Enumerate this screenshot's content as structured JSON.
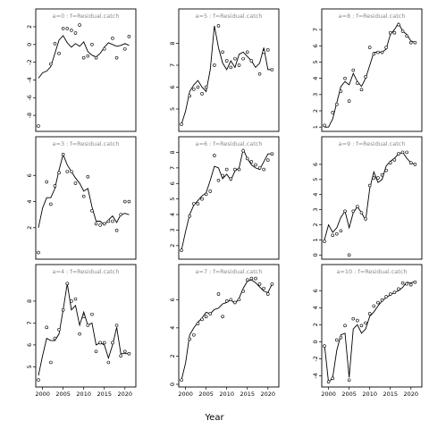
{
  "chart_data": {
    "type": "line",
    "layout": "3x3 facet grid",
    "xlabel": "Year",
    "strip_format": "a={a} : f=Residual.catch",
    "panels": [
      {
        "strip": "a=0 : f=Residual.catch",
        "xlim": [
          1999,
          2022
        ],
        "ylim": [
          -9.5,
          2.6
        ],
        "yticks": [
          -8,
          -6,
          -4,
          -2,
          0,
          2
        ],
        "x": [
          1999,
          2000,
          2001,
          2002,
          2003,
          2004,
          2005,
          2006,
          2007,
          2008,
          2009,
          2010,
          2011,
          2012,
          2013,
          2014,
          2015,
          2016,
          2017,
          2018,
          2019,
          2020,
          2021
        ],
        "fitted": [
          -3.8,
          -3.2,
          -3.0,
          -2.5,
          -1.0,
          0.5,
          1.0,
          0.2,
          -0.3,
          0.1,
          -0.2,
          0.3,
          -0.8,
          -1.2,
          -1.4,
          -1.0,
          -0.3,
          0.2,
          0.0,
          -0.2,
          -0.1,
          0.1,
          -0.1
        ],
        "observed_x": [
          1999,
          2002,
          2003,
          2004,
          2005,
          2006,
          2007,
          2008,
          2009,
          2010,
          2011,
          2012,
          2013,
          2015,
          2017,
          2018,
          2020,
          2021
        ],
        "observed_y": [
          -9.2,
          -2.2,
          0.1,
          -1.0,
          1.8,
          1.8,
          1.6,
          1.3,
          2.2,
          -1.5,
          -1.3,
          0.0,
          -1.5,
          -0.5,
          0.7,
          -1.5,
          -0.5,
          0.9
        ]
      },
      {
        "strip": "a=5 : f=Residual.catch",
        "xlim": [
          1999,
          2022
        ],
        "ylim": [
          4.1,
          9.0
        ],
        "yticks": [
          5,
          6,
          7,
          8
        ],
        "x": [
          1999,
          2000,
          2001,
          2002,
          2003,
          2004,
          2005,
          2006,
          2007,
          2008,
          2009,
          2010,
          2011,
          2012,
          2013,
          2014,
          2015,
          2016,
          2017,
          2018,
          2019,
          2020,
          2021
        ],
        "fitted": [
          4.3,
          4.9,
          5.8,
          6.1,
          6.3,
          6.0,
          5.8,
          6.8,
          8.8,
          7.8,
          7.1,
          6.8,
          7.2,
          6.9,
          7.5,
          7.6,
          7.4,
          7.2,
          6.9,
          7.1,
          7.8,
          6.8,
          6.8
        ],
        "observed_x": [
          1999,
          2001,
          2002,
          2003,
          2004,
          2005,
          2007,
          2008,
          2009,
          2010,
          2011,
          2012,
          2013,
          2014,
          2015,
          2016,
          2018,
          2019,
          2020,
          2021
        ],
        "observed_y": [
          4.3,
          5.6,
          5.9,
          6.0,
          5.7,
          6.0,
          7.0,
          8.8,
          7.6,
          7.2,
          6.9,
          7.3,
          7.0,
          7.3,
          7.6,
          7.2,
          6.6,
          7.6,
          7.7,
          6.8
        ]
      },
      {
        "strip": "a=8 : f=Residual.catch",
        "xlim": [
          1999,
          2022
        ],
        "ylim": [
          0.9,
          7.5
        ],
        "yticks": [
          1,
          2,
          3,
          4,
          5,
          6,
          7
        ],
        "x": [
          1999,
          2000,
          2001,
          2002,
          2003,
          2004,
          2005,
          2006,
          2007,
          2008,
          2009,
          2010,
          2011,
          2012,
          2013,
          2014,
          2015,
          2016,
          2017,
          2018,
          2019,
          2020,
          2021
        ],
        "fitted": [
          1.0,
          1.0,
          1.5,
          2.5,
          3.5,
          3.8,
          3.6,
          4.3,
          3.8,
          3.5,
          4.0,
          4.8,
          5.6,
          5.6,
          5.6,
          5.8,
          6.7,
          7.0,
          7.4,
          6.9,
          6.7,
          6.3,
          6.2
        ],
        "observed_x": [
          1999,
          2001,
          2002,
          2003,
          2004,
          2005,
          2006,
          2007,
          2008,
          2009,
          2010,
          2011,
          2012,
          2013,
          2014,
          2015,
          2016,
          2017,
          2018,
          2019,
          2020,
          2021
        ],
        "observed_y": [
          1.1,
          1.9,
          2.4,
          3.2,
          4.0,
          2.6,
          4.5,
          3.7,
          3.3,
          4.1,
          5.9,
          5.5,
          5.6,
          5.6,
          5.9,
          6.8,
          6.8,
          7.3,
          6.9,
          6.6,
          6.2,
          6.2
        ]
      },
      {
        "strip": "a=3 : f=Residual.catch",
        "xlim": [
          1999,
          2022
        ],
        "ylim": [
          -0.2,
          8.0
        ],
        "yticks": [
          2,
          4,
          6
        ],
        "x": [
          1999,
          2000,
          2001,
          2002,
          2003,
          2004,
          2005,
          2006,
          2007,
          2008,
          2009,
          2010,
          2011,
          2012,
          2013,
          2014,
          2015,
          2016,
          2017,
          2018,
          2019,
          2020,
          2021
        ],
        "fitted": [
          2.0,
          3.5,
          4.3,
          4.3,
          5.0,
          6.4,
          7.6,
          6.8,
          6.3,
          5.8,
          5.4,
          4.8,
          5.0,
          3.6,
          2.5,
          2.5,
          2.2,
          2.6,
          2.9,
          2.4,
          3.0,
          3.1,
          3.0
        ],
        "observed_x": [
          1999,
          2001,
          2002,
          2003,
          2004,
          2005,
          2006,
          2007,
          2008,
          2010,
          2011,
          2012,
          2013,
          2014,
          2015,
          2016,
          2017,
          2018,
          2019,
          2020,
          2021
        ],
        "observed_y": [
          0.1,
          5.5,
          3.8,
          5.2,
          6.2,
          7.6,
          6.3,
          6.3,
          5.4,
          4.4,
          5.9,
          3.3,
          2.3,
          2.2,
          2.3,
          2.5,
          2.5,
          1.8,
          3.0,
          4.0,
          4.0
        ]
      },
      {
        "strip": "a=6 : f=Residual.catch",
        "xlim": [
          1999,
          2022
        ],
        "ylim": [
          1.3,
          8.2
        ],
        "yticks": [
          2,
          3,
          4,
          5,
          6,
          7,
          8
        ],
        "x": [
          1999,
          2000,
          2001,
          2002,
          2003,
          2004,
          2005,
          2006,
          2007,
          2008,
          2009,
          2010,
          2011,
          2012,
          2013,
          2014,
          2015,
          2016,
          2017,
          2018,
          2019,
          2020,
          2021
        ],
        "fitted": [
          1.7,
          2.9,
          4.0,
          4.6,
          4.9,
          5.2,
          5.4,
          6.2,
          7.1,
          7.0,
          6.3,
          6.6,
          6.2,
          6.8,
          7.0,
          8.2,
          7.6,
          7.2,
          7.0,
          6.9,
          7.4,
          7.9,
          7.9
        ],
        "observed_x": [
          1999,
          2001,
          2002,
          2003,
          2004,
          2005,
          2006,
          2007,
          2008,
          2009,
          2010,
          2011,
          2012,
          2013,
          2014,
          2015,
          2016,
          2017,
          2018,
          2019,
          2020,
          2021
        ],
        "observed_y": [
          1.7,
          3.9,
          4.7,
          4.7,
          5.0,
          5.3,
          5.5,
          7.8,
          6.2,
          6.5,
          6.9,
          6.3,
          6.9,
          6.9,
          8.1,
          7.6,
          7.4,
          7.2,
          7.0,
          6.9,
          7.5,
          7.9
        ]
      },
      {
        "strip": "a=9 : f=Residual.catch",
        "xlim": [
          1999,
          2022
        ],
        "ylim": [
          -0.1,
          7.0
        ],
        "yticks": [
          0,
          1,
          2,
          3,
          4,
          5,
          6
        ],
        "x": [
          1999,
          2000,
          2001,
          2002,
          2003,
          2004,
          2005,
          2006,
          2007,
          2008,
          2009,
          2010,
          2011,
          2012,
          2013,
          2014,
          2015,
          2016,
          2017,
          2018,
          2019,
          2020,
          2021
        ],
        "fitted": [
          1.0,
          2.0,
          1.5,
          1.8,
          2.5,
          2.9,
          1.8,
          2.8,
          3.2,
          2.8,
          2.3,
          4.4,
          5.5,
          4.8,
          5.0,
          5.9,
          6.2,
          6.4,
          6.7,
          6.8,
          6.4,
          6.1,
          6.0
        ],
        "observed_x": [
          1999,
          2001,
          2002,
          2003,
          2004,
          2005,
          2006,
          2007,
          2008,
          2009,
          2010,
          2011,
          2012,
          2013,
          2014,
          2015,
          2016,
          2017,
          2018,
          2019,
          2020,
          2021
        ],
        "observed_y": [
          0.9,
          1.3,
          1.4,
          1.6,
          2.9,
          0.0,
          2.9,
          3.2,
          2.8,
          2.4,
          4.6,
          5.1,
          5.1,
          5.3,
          5.6,
          6.1,
          6.3,
          6.7,
          6.8,
          6.8,
          6.1,
          6.0
        ]
      },
      {
        "strip": "a=4 : f=Residual.catch",
        "xlim": [
          1999,
          2022
        ],
        "ylim": [
          4.2,
          9.1
        ],
        "yticks": [
          5,
          6,
          7,
          8
        ],
        "x": [
          1999,
          2000,
          2001,
          2002,
          2003,
          2004,
          2005,
          2006,
          2007,
          2008,
          2009,
          2010,
          2011,
          2012,
          2013,
          2014,
          2015,
          2016,
          2017,
          2018,
          2019,
          2020,
          2021
        ],
        "fitted": [
          4.6,
          5.5,
          6.3,
          6.2,
          6.2,
          6.5,
          7.6,
          8.8,
          7.6,
          7.8,
          6.9,
          7.5,
          6.9,
          7.0,
          6.0,
          6.1,
          6.0,
          5.4,
          6.0,
          6.8,
          5.6,
          5.6,
          5.6
        ],
        "observed_x": [
          1999,
          2001,
          2002,
          2003,
          2004,
          2005,
          2006,
          2007,
          2008,
          2009,
          2010,
          2011,
          2012,
          2013,
          2014,
          2015,
          2016,
          2017,
          2018,
          2019,
          2020,
          2021
        ],
        "observed_y": [
          4.4,
          6.8,
          5.2,
          6.3,
          6.7,
          7.6,
          8.8,
          8.0,
          8.1,
          6.5,
          7.3,
          6.9,
          7.4,
          5.7,
          6.1,
          6.1,
          5.2,
          6.1,
          6.9,
          5.5,
          5.7,
          5.6
        ]
      },
      {
        "strip": "a=7 : f=Residual.catch",
        "xlim": [
          1999,
          2022
        ],
        "ylim": [
          0.0,
          7.6
        ],
        "yticks": [
          0,
          2,
          4,
          6
        ],
        "x": [
          1999,
          2000,
          2001,
          2002,
          2003,
          2004,
          2005,
          2006,
          2007,
          2008,
          2009,
          2010,
          2011,
          2012,
          2013,
          2014,
          2015,
          2016,
          2017,
          2018,
          2019,
          2020,
          2021
        ],
        "fitted": [
          0.3,
          1.5,
          3.5,
          4.0,
          4.4,
          4.7,
          5.1,
          5.0,
          5.3,
          5.4,
          5.7,
          5.8,
          6.0,
          5.7,
          6.1,
          6.8,
          7.3,
          7.4,
          7.2,
          6.9,
          6.6,
          6.5,
          7.1
        ],
        "observed_x": [
          1999,
          2001,
          2002,
          2003,
          2004,
          2005,
          2006,
          2008,
          2009,
          2010,
          2011,
          2012,
          2013,
          2014,
          2015,
          2016,
          2017,
          2018,
          2019,
          2020,
          2021
        ],
        "observed_y": [
          0.3,
          3.2,
          3.5,
          4.3,
          4.6,
          4.8,
          5.0,
          6.4,
          4.8,
          5.9,
          6.0,
          5.8,
          6.0,
          6.6,
          7.4,
          7.5,
          7.5,
          7.1,
          6.8,
          6.4,
          7.1
        ]
      },
      {
        "strip": "a=10 : f=Residual.catch",
        "xlim": [
          1999,
          2022
        ],
        "ylim": [
          -5.0,
          7.6
        ],
        "yticks": [
          -4,
          -2,
          0,
          2,
          4,
          6
        ],
        "x": [
          1999,
          2000,
          2001,
          2002,
          2003,
          2004,
          2005,
          2006,
          2007,
          2008,
          2009,
          2010,
          2011,
          2012,
          2013,
          2014,
          2015,
          2016,
          2017,
          2018,
          2019,
          2020,
          2021
        ],
        "fitted": [
          -0.3,
          -4.8,
          -4.2,
          -1.0,
          0.8,
          1.0,
          -4.2,
          1.5,
          2.0,
          1.0,
          1.5,
          3.0,
          3.5,
          4.2,
          4.8,
          5.2,
          5.5,
          5.8,
          6.0,
          6.4,
          7.0,
          6.9,
          7.1
        ],
        "observed_x": [
          1999,
          2000,
          2001,
          2002,
          2003,
          2004,
          2005,
          2006,
          2007,
          2008,
          2009,
          2010,
          2011,
          2012,
          2013,
          2014,
          2015,
          2016,
          2017,
          2018,
          2019,
          2020,
          2021
        ],
        "observed_y": [
          -0.5,
          -4.7,
          -4.3,
          0.2,
          0.5,
          1.9,
          -4.5,
          2.7,
          2.5,
          1.9,
          2.2,
          3.3,
          4.2,
          4.6,
          4.9,
          5.3,
          5.6,
          5.8,
          6.2,
          6.9,
          6.8,
          6.7,
          7.0
        ]
      }
    ],
    "xticks_bottom": [
      2000,
      2005,
      2010,
      2015,
      2020
    ]
  }
}
